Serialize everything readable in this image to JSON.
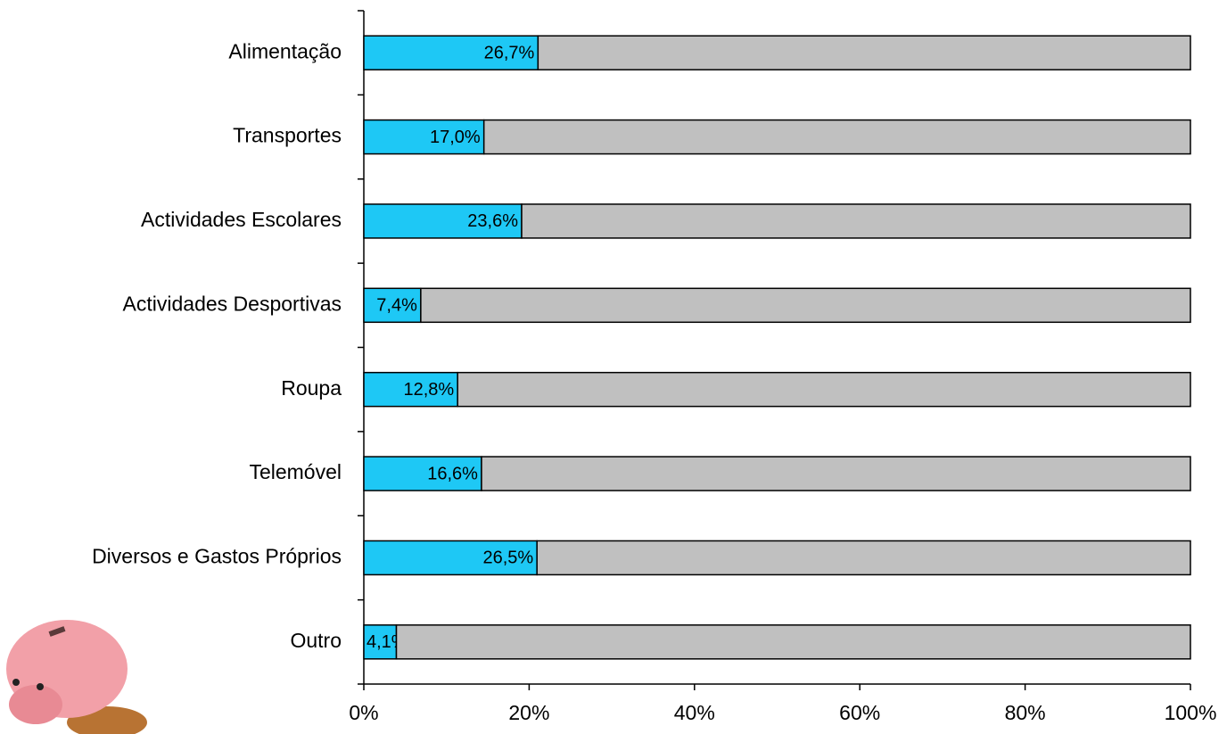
{
  "chart_data": {
    "type": "bar",
    "orientation": "horizontal",
    "stacking": "percent",
    "categories": [
      "Alimentação",
      "Transportes",
      "Actividades Escolares",
      "Actividades Desportivas",
      "Roupa",
      "Telemóvel",
      "Diversos e Gastos Próprios",
      "Outro"
    ],
    "series": [
      {
        "color": "#1ec8f5",
        "values": [
          26.7,
          17.0,
          23.6,
          7.4,
          12.8,
          16.6,
          26.5,
          4.1
        ],
        "value_labels": [
          "26,7%",
          "17,0%",
          "23,6%",
          "7,4%",
          "12,8%",
          "16,6%",
          "26,5%",
          "4,1%"
        ]
      },
      {
        "color": "#c0c0c0",
        "values": [
          100,
          100,
          100,
          100,
          100,
          100,
          100,
          100
        ]
      }
    ],
    "xlim": [
      0,
      100
    ],
    "xticks": [
      {
        "value": 0,
        "label": "0%"
      },
      {
        "value": 20,
        "label": "20%"
      },
      {
        "value": 40,
        "label": "40%"
      },
      {
        "value": 60,
        "label": "60%"
      },
      {
        "value": 80,
        "label": "80%"
      },
      {
        "value": 100,
        "label": "100%"
      }
    ]
  }
}
